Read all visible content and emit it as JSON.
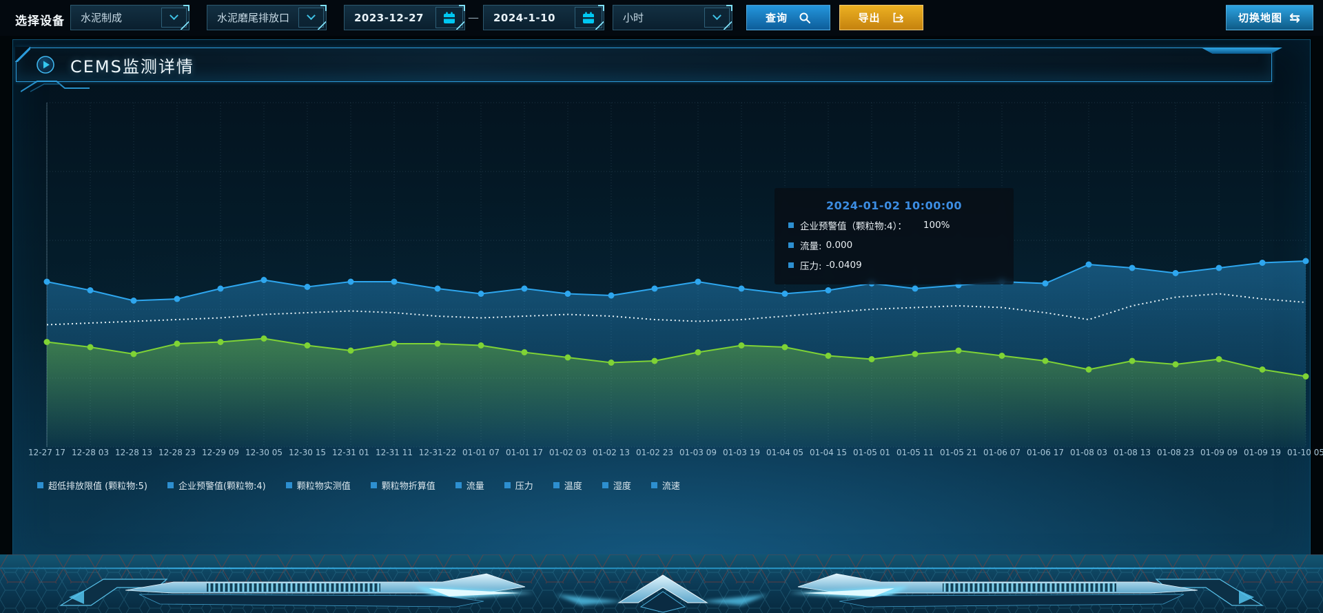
{
  "toolbar": {
    "device_label": "选择设备",
    "selects": [
      {
        "value": "水泥制成"
      },
      {
        "value": "水泥磨尾排放口"
      }
    ],
    "date_start": "2023-12-27",
    "date_separator": "—",
    "date_end": "2024-1-10",
    "interval_select": {
      "value": "小时"
    },
    "query_label": "查询",
    "export_label": "导出",
    "switch_map_label": "切换地图",
    "switch_map_glyph": "⇆"
  },
  "panel": {
    "title": "CEMS监测详情"
  },
  "tooltip": {
    "title": "2024-01-02 10:00:00",
    "rows": [
      {
        "label": "企业预警值（颗粒物:4）：",
        "value": "100%"
      },
      {
        "label": "流量:",
        "value": "0.000"
      },
      {
        "label": "压力:",
        "value": "-0.0409"
      }
    ]
  },
  "legend": [
    "超低排放限值 (颗粒物:5)",
    "企业预警值(颗粒物:4)",
    "颗粒物实测值",
    "颗粒物折算值",
    "流量",
    "压力",
    "温度",
    "湿度",
    "流速"
  ],
  "colors": {
    "accent_cyan": "#2fa6e6",
    "export_orange": "#e2a41c",
    "panel_border": "#0f5070",
    "titlebar_border": "#2b99d8",
    "axis_label": "#a9c7d8",
    "legend_marker": "#2d8fd0",
    "tooltip_title": "#3c8de2",
    "series_blue": "#2ea6ee",
    "series_white": "#e8f3f7",
    "series_green": "#7fd335"
  },
  "chart_data": {
    "type": "line",
    "title": "",
    "xlabel": "",
    "ylabel": "",
    "ylim": [
      0,
      100
    ],
    "grid": "dotted",
    "legend_position": "bottom",
    "y_axis_labels_visible": false,
    "x_labels": [
      "12-27 17",
      "12-28 03",
      "12-28 13",
      "12-28 23",
      "12-29 09",
      "12-30 05",
      "12-30 15",
      "12-31 01",
      "12-31 11",
      "12-31-22",
      "01-01 07",
      "01-01 17",
      "01-02 03",
      "01-02 13",
      "01-02 23",
      "01-03 09",
      "01-03 19",
      "01-04 05",
      "01-04 15",
      "01-05 01",
      "01-05 11",
      "01-05 21",
      "01-06 07",
      "01-06 17",
      "01-08 03",
      "01-08 13",
      "01-08 23",
      "01-09 09",
      "01-09 19",
      "01-10 05"
    ],
    "series": [
      {
        "name": "series-blue-dots",
        "color": "#2ea6ee",
        "style": "solid-dots",
        "area": true,
        "values": [
          48,
          45.5,
          42.5,
          43,
          46,
          48.5,
          46.5,
          48,
          48,
          46,
          44.5,
          46,
          44.5,
          44,
          46,
          48,
          46,
          44.5,
          45.5,
          47.5,
          46,
          47,
          48,
          47.5,
          53,
          52,
          50.5,
          52,
          53.5,
          54
        ]
      },
      {
        "name": "series-white-dotted",
        "color": "#e8f3f7",
        "style": "dotted",
        "area": false,
        "values": [
          35.5,
          36,
          36.5,
          37,
          37.5,
          38.5,
          39,
          39.5,
          39,
          38,
          37.5,
          38,
          38.5,
          38,
          37,
          36.5,
          37,
          38,
          39,
          40,
          40.5,
          41,
          40.5,
          39,
          37,
          41,
          43.5,
          44.5,
          43,
          42
        ]
      },
      {
        "name": "series-green-dots",
        "color": "#7fd335",
        "style": "solid-dots",
        "area": true,
        "values": [
          30.5,
          29,
          27,
          30,
          30.5,
          31.5,
          29.5,
          28,
          30,
          30,
          29.5,
          27.5,
          26,
          24.5,
          25,
          27.5,
          29.5,
          29,
          26.5,
          25.5,
          27,
          28,
          26.5,
          25,
          22.5,
          25,
          24,
          25.5,
          22.5,
          20.5
        ]
      }
    ]
  }
}
